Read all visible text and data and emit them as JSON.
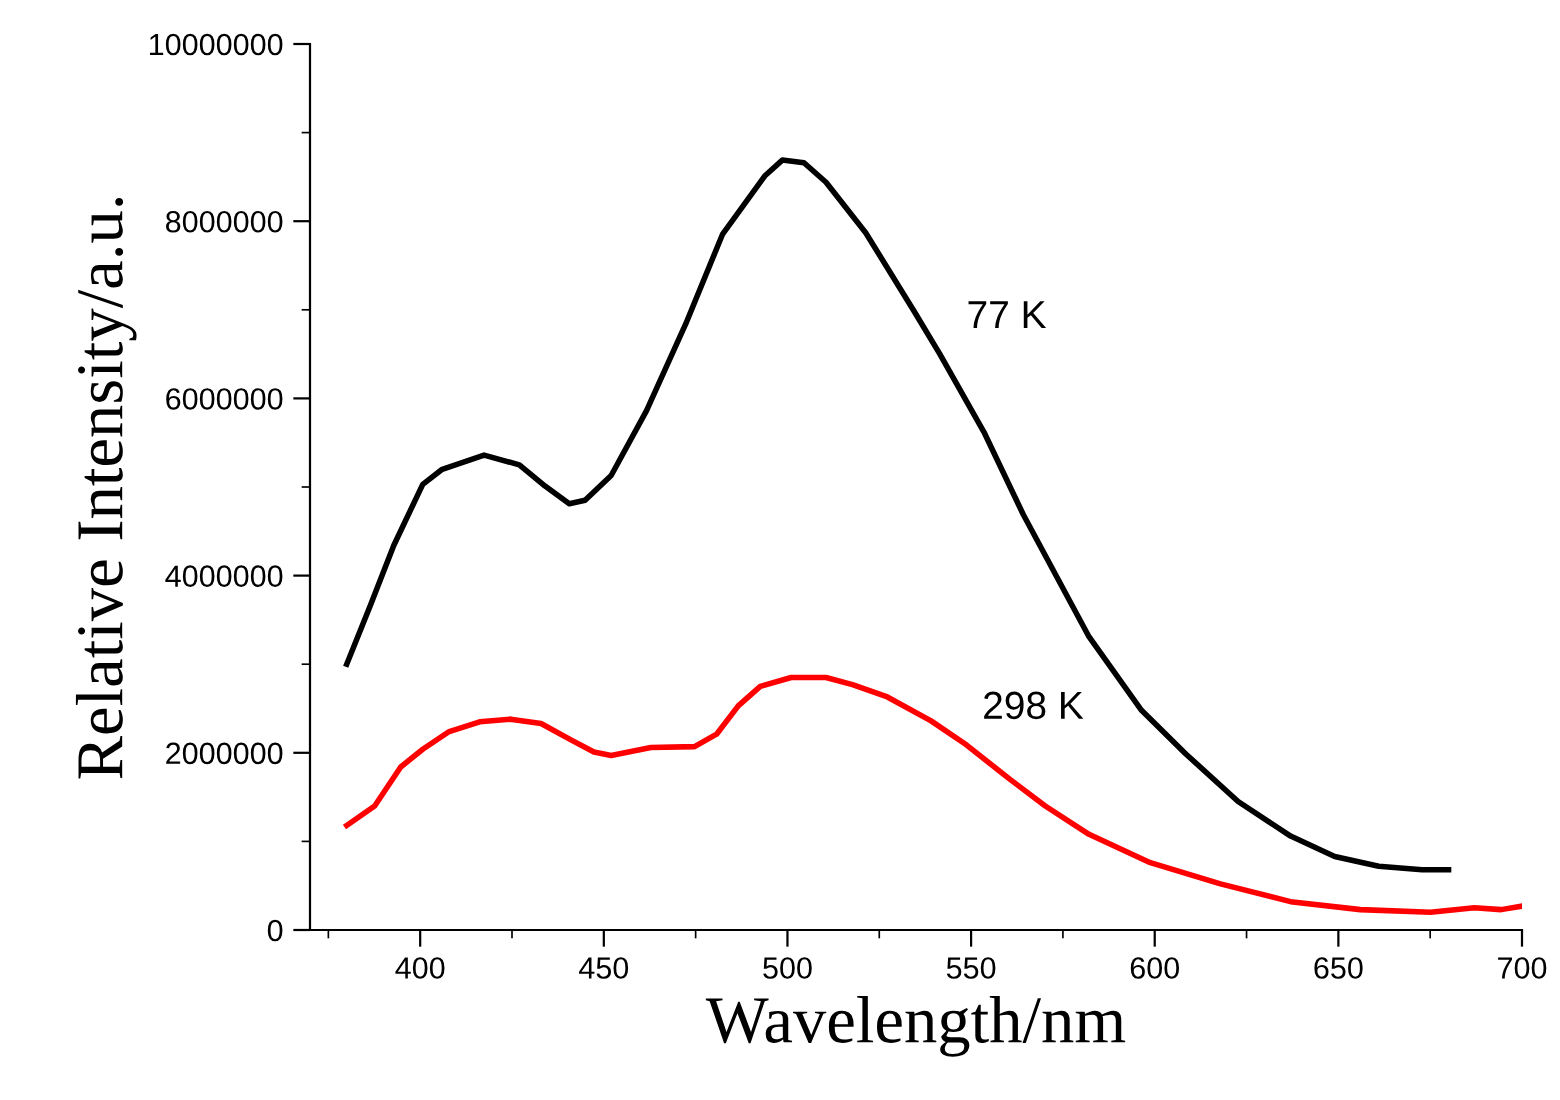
{
  "chart_data": {
    "type": "line",
    "xlabel": "Wavelength/nm",
    "ylabel": "Relative Intensity/a.u.",
    "xlim": [
      370,
      700
    ],
    "xticks": [
      400,
      450,
      500,
      550,
      600,
      650,
      700
    ],
    "ylim": [
      0,
      10000000
    ],
    "yticks": [
      0,
      2000000,
      4000000,
      6000000,
      8000000,
      10000000
    ],
    "grid": false,
    "marker": "none",
    "line_style": "solid",
    "series": [
      {
        "name": "77 K",
        "color": "#000000",
        "x": [
          380,
          386.4,
          392.8,
          400.7,
          406,
          417.4,
          427,
          434,
          440.6,
          444.9,
          452,
          461.6,
          472.3,
          482.3,
          493.8,
          498.6,
          504.5,
          510.5,
          521.3,
          534.4,
          541.5,
          553.5,
          564.2,
          582.1,
          596.4,
          608.4,
          622.7,
          637,
          649,
          661,
          672.8,
          680
        ],
        "values": [
          3000000,
          3660000,
          4340000,
          5030000,
          5200000,
          5360000,
          5250000,
          5010000,
          4810000,
          4850000,
          5130000,
          5860000,
          6840000,
          7850000,
          8510000,
          8690000,
          8660000,
          8440000,
          7870000,
          6990000,
          6500000,
          5620000,
          4690000,
          3310000,
          2480000,
          1990000,
          1450000,
          1060000,
          830000,
          720000,
          680000,
          680000
        ]
      },
      {
        "name": "298 K",
        "color": "#ff0000",
        "x": [
          380,
          387.6,
          394.7,
          400.7,
          407.9,
          416.2,
          424.6,
          432.9,
          441.3,
          447.3,
          452,
          462.8,
          474.7,
          480.7,
          486.6,
          492.6,
          501,
          510.5,
          517.7,
          527.2,
          539.1,
          548.7,
          560.6,
          570.2,
          582.1,
          598.8,
          617.9,
          637,
          656,
          675.1,
          687,
          694.3,
          700
        ],
        "values": [
          1180000,
          1400000,
          1840000,
          2040000,
          2240000,
          2350000,
          2380000,
          2330000,
          2140000,
          2010000,
          1970000,
          2060000,
          2070000,
          2210000,
          2530000,
          2750000,
          2850000,
          2850000,
          2770000,
          2630000,
          2360000,
          2090000,
          1700000,
          1400000,
          1080000,
          760000,
          520000,
          320000,
          230000,
          200000,
          250000,
          230000,
          270000
        ]
      }
    ]
  }
}
